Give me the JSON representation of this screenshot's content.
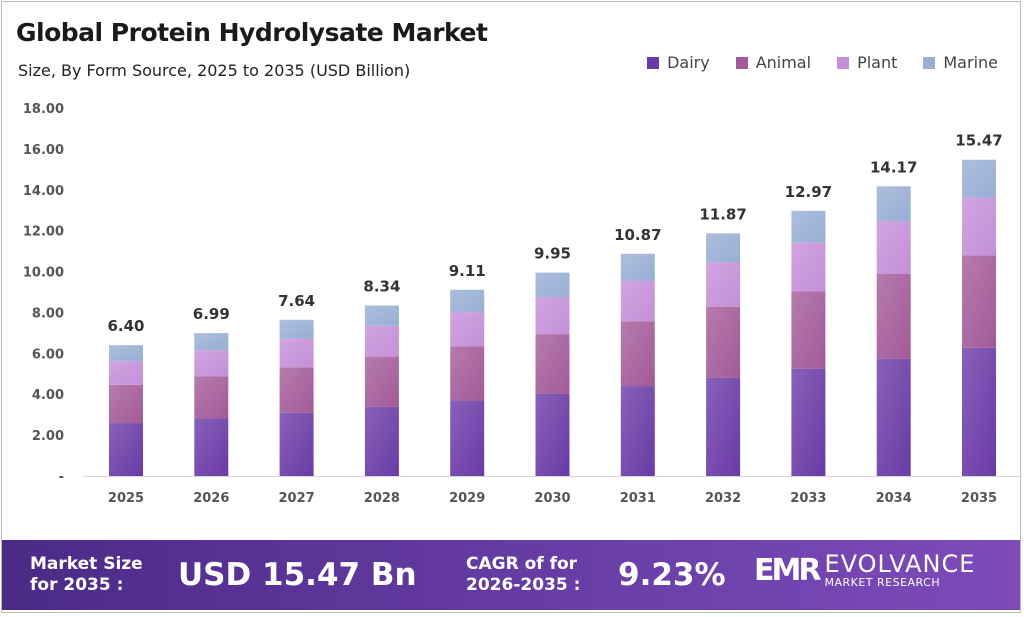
{
  "chart_data": {
    "type": "bar",
    "stacked": true,
    "title": "Global Protein Hydrolysate Market",
    "subtitle": "Size, By Form Source, 2025 to 2035 (USD Billion)",
    "xlabel": "",
    "ylabel": "",
    "ylim": [
      0,
      18
    ],
    "yticks": [
      0,
      2,
      4,
      6,
      8,
      10,
      12,
      14,
      16,
      18
    ],
    "ytick_labels": [
      "-",
      "2.00",
      "4.00",
      "6.00",
      "8.00",
      "10.00",
      "12.00",
      "14.00",
      "16.00",
      "18.00"
    ],
    "grid": false,
    "legend_position": "top-right",
    "categories": [
      "2025",
      "2026",
      "2027",
      "2028",
      "2029",
      "2030",
      "2031",
      "2032",
      "2033",
      "2034",
      "2035"
    ],
    "series": [
      {
        "name": "Dairy",
        "color": "#6a3aa6",
        "values": [
          2.59,
          2.83,
          3.09,
          3.38,
          3.69,
          4.03,
          4.4,
          4.81,
          5.25,
          5.74,
          6.27
        ]
      },
      {
        "name": "Animal",
        "color": "#a35a98",
        "values": [
          1.87,
          2.04,
          2.23,
          2.44,
          2.66,
          2.91,
          3.17,
          3.47,
          3.79,
          4.14,
          4.52
        ]
      },
      {
        "name": "Plant",
        "color": "#c48fd8",
        "values": [
          1.17,
          1.28,
          1.4,
          1.53,
          1.67,
          1.82,
          1.99,
          2.17,
          2.37,
          2.59,
          2.83
        ]
      },
      {
        "name": "Marine",
        "color": "#98aed4",
        "values": [
          0.77,
          0.84,
          0.92,
          0.99,
          1.09,
          1.19,
          1.31,
          1.42,
          1.56,
          1.7,
          1.85
        ]
      }
    ],
    "totals": [
      "6.40",
      "6.99",
      "7.64",
      "8.34",
      "9.11",
      "9.95",
      "10.87",
      "11.87",
      "12.97",
      "14.17",
      "15.47"
    ]
  },
  "banner": {
    "market_size_label_1": "Market Size",
    "market_size_label_2": "for 2035 :",
    "market_size_value": "USD 15.47 Bn",
    "cagr_label_1": "CAGR of for",
    "cagr_label_2": "2026-2035 :",
    "cagr_value": "9.23%",
    "logo_mark": "EMR",
    "logo_name": "EVOLVANCE",
    "logo_sub": "MARKET RESEARCH"
  }
}
